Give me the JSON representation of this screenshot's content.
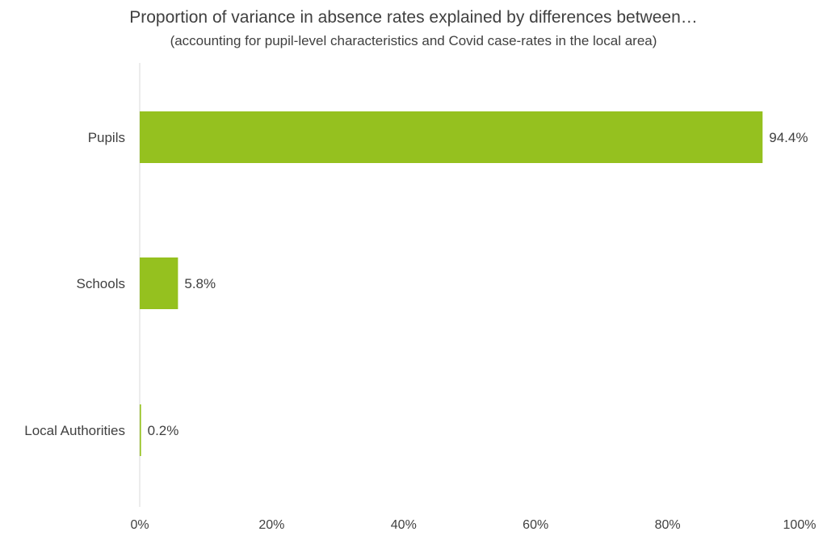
{
  "chart_data": {
    "type": "bar",
    "orientation": "horizontal",
    "title": "Proportion of variance in absence rates explained by differences between…",
    "subtitle": "(accounting for pupil-level characteristics and Covid case-rates in the local area)",
    "categories": [
      "Pupils",
      "Schools",
      "Local Authorities"
    ],
    "values": [
      94.4,
      5.8,
      0.2
    ],
    "value_labels": [
      "94.4%",
      "5.8%",
      "0.2%"
    ],
    "xlim": [
      0,
      100
    ],
    "x_ticks": [
      0,
      20,
      40,
      60,
      80,
      100
    ],
    "x_tick_labels": [
      "0%",
      "20%",
      "40%",
      "60%",
      "80%",
      "100%"
    ],
    "xlabel": "",
    "ylabel": "",
    "grid": false,
    "legend": "none",
    "bar_color": "#95c11f",
    "axis_color": "#d9d9d9"
  }
}
